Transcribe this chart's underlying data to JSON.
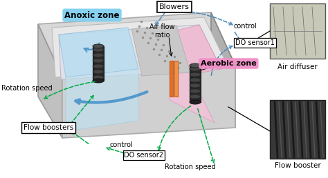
{
  "bg_color": "#ffffff",
  "fig_width": 4.74,
  "fig_height": 2.58,
  "dpi": 100,
  "labels": {
    "anoxic_zone": "Anoxic zone",
    "aerobic_zone": "Aerobic zone",
    "blowers": "Blowers",
    "air_flow_ratio": "Air flow\nratio",
    "control_top": "control",
    "do_sensor1": "DO sensor1",
    "rotation_speed_left": "Rotation speed",
    "flow_boosters": "Flow boosters",
    "control_bottom": "control",
    "do_sensor2": "DO sensor2",
    "rotation_speed_bottom": "Rotation speed",
    "air_diffuser": "Air diffuser",
    "flow_booster": "Flow booster"
  },
  "colors": {
    "tank_outer": "#c8c8c8",
    "tank_wall_top": "#e8e8e8",
    "tank_wall_left": "#d0d0d0",
    "tank_wall_right": "#b8b8b8",
    "tank_inner_floor": "#e0e0e0",
    "anoxic_fill": "#b0d8f0",
    "aerobic_fill": "#f0b0d0",
    "diffuser_strip": "#cccccc",
    "booster_dark": "#282828",
    "booster_mid": "#3a3a3a",
    "orange1": "#e87020",
    "orange2": "#f09040",
    "green_arrow": "#00aa44",
    "blue_arrow": "#4488bb",
    "black": "#000000",
    "white": "#ffffff"
  }
}
